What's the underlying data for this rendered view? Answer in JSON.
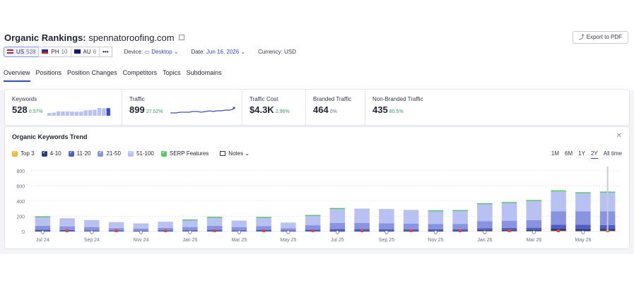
{
  "header": {
    "title_prefix": "Organic Rankings:",
    "domain": "spennatoroofing.com",
    "export_label": "Export to PDF"
  },
  "databases": [
    {
      "code": "US",
      "count": "528"
    },
    {
      "code": "PH",
      "count": "10"
    },
    {
      "code": "AU",
      "count": "6"
    }
  ],
  "filters": {
    "device_label": "Device:",
    "device_value": "Desktop",
    "date_label": "Date:",
    "date_value": "Jun 16, 2026",
    "currency_label": "Currency:",
    "currency_value": "USD"
  },
  "tabs": [
    "Overview",
    "Positions",
    "Position Changes",
    "Competitors",
    "Topics",
    "Subdomains"
  ],
  "kpis": [
    {
      "label": "Keywords",
      "value": "528",
      "change": "0.57%"
    },
    {
      "label": "Traffic",
      "value": "899",
      "change": "27.52%"
    },
    {
      "label": "Traffic Cost",
      "value": "$4.3K",
      "change": "2.96%"
    },
    {
      "label": "Branded Traffic",
      "value": "464",
      "change": "0%"
    },
    {
      "label": "Non-Branded Traffic",
      "value": "435",
      "change": "80.5%"
    }
  ],
  "trend": {
    "title": "Organic Keywords Trend",
    "legend": [
      {
        "label": "Top 3",
        "color": "#f5b82e"
      },
      {
        "label": "4-10",
        "color": "#2c3a8c"
      },
      {
        "label": "11-20",
        "color": "#4e5ec4"
      },
      {
        "label": "21-50",
        "color": "#8894e0"
      },
      {
        "label": "51-100",
        "color": "#b8c2f2"
      },
      {
        "label": "SERP Features",
        "color": "#5cc46c"
      }
    ],
    "notes_label": "Notes",
    "ranges": [
      "1M",
      "6M",
      "1Y",
      "2Y",
      "All time"
    ],
    "active_range": "2Y"
  },
  "chart_data": {
    "type": "bar",
    "ylim": [
      0,
      800
    ],
    "y_ticks": [
      "0",
      "200",
      "400",
      "600",
      "800"
    ],
    "x_labels": [
      "Jul 24",
      "Sep 24",
      "Nov 24",
      "Jan 25",
      "Mar 25",
      "May 25",
      "Jul 25",
      "Sep 25",
      "Nov 25",
      "Jan 26",
      "Mar 26",
      "May 26"
    ],
    "stack_order": [
      "Top 3",
      "4-10",
      "11-20",
      "21-50",
      "51-100"
    ],
    "bars": [
      [
        0,
        10,
        15,
        50,
        120
      ],
      [
        0,
        8,
        12,
        45,
        110
      ],
      [
        0,
        6,
        10,
        40,
        95
      ],
      [
        0,
        5,
        8,
        32,
        78
      ],
      [
        0,
        4,
        7,
        28,
        68
      ],
      [
        0,
        5,
        9,
        35,
        80
      ],
      [
        0,
        6,
        11,
        42,
        95
      ],
      [
        0,
        8,
        14,
        52,
        115
      ],
      [
        0,
        6,
        10,
        40,
        88
      ],
      [
        0,
        8,
        14,
        50,
        115
      ],
      [
        0,
        5,
        8,
        30,
        75
      ],
      [
        0,
        8,
        15,
        60,
        130
      ],
      [
        0,
        12,
        20,
        80,
        190
      ],
      [
        0,
        12,
        20,
        80,
        190
      ],
      [
        0,
        11,
        20,
        78,
        188
      ],
      [
        0,
        11,
        19,
        75,
        180
      ],
      [
        0,
        10,
        18,
        72,
        175
      ],
      [
        0,
        10,
        18,
        70,
        180
      ],
      [
        5,
        15,
        25,
        90,
        230
      ],
      [
        5,
        16,
        27,
        95,
        237
      ],
      [
        5,
        17,
        28,
        100,
        255
      ],
      [
        8,
        30,
        50,
        180,
        260
      ],
      [
        5,
        30,
        55,
        175,
        245
      ],
      [
        8,
        28,
        50,
        180,
        250
      ]
    ],
    "serp_features": [
      5,
      0,
      0,
      0,
      0,
      0,
      5,
      5,
      0,
      5,
      0,
      5,
      8,
      0,
      0,
      0,
      5,
      5,
      8,
      8,
      10,
      15,
      8,
      10
    ]
  }
}
